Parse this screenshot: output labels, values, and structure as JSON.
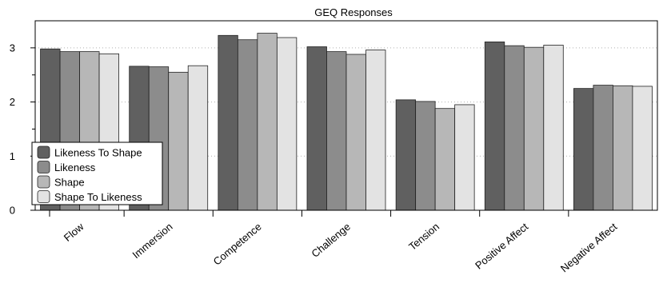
{
  "chart_data": {
    "type": "bar",
    "title": "GEQ Responses",
    "xlabel": "",
    "ylabel": "",
    "ylim": [
      0,
      3.5
    ],
    "yticks": [
      0,
      1,
      2,
      3
    ],
    "grid": "horizontal-dotted",
    "legend_position": "bottom-left",
    "categories": [
      "Flow",
      "Immersion",
      "Competence",
      "Challenge",
      "Tension",
      "Positive Affect",
      "Negative Affect"
    ],
    "series": [
      {
        "name": "Likeness To Shape",
        "color": "#606060",
        "values": [
          2.98,
          2.66,
          3.23,
          3.02,
          2.04,
          3.11,
          2.25
        ]
      },
      {
        "name": "Likeness",
        "color": "#8c8c8c",
        "values": [
          2.93,
          2.65,
          3.15,
          2.93,
          2.01,
          3.04,
          2.31
        ]
      },
      {
        "name": "Shape",
        "color": "#b7b7b7",
        "values": [
          2.93,
          2.55,
          3.27,
          2.88,
          1.88,
          3.01,
          2.3
        ]
      },
      {
        "name": "Shape To Likeness",
        "color": "#e3e3e3",
        "values": [
          2.89,
          2.67,
          3.19,
          2.96,
          1.95,
          3.05,
          2.29
        ]
      }
    ]
  }
}
